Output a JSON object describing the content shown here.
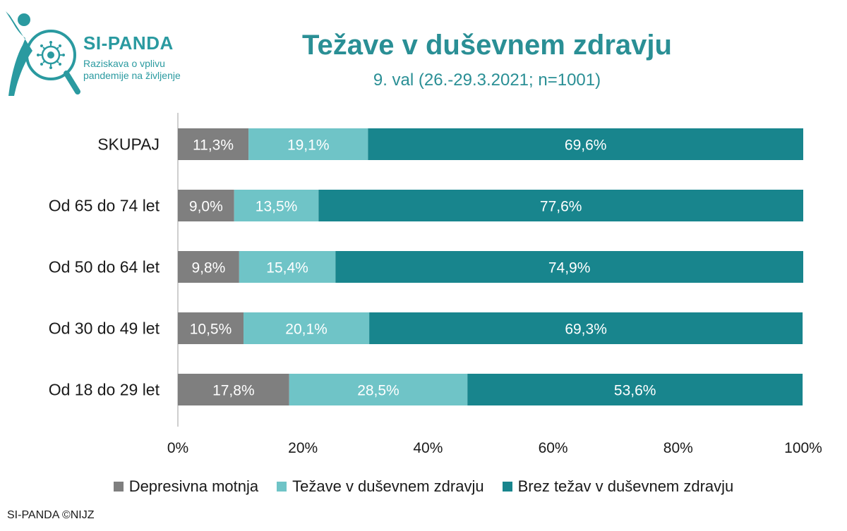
{
  "logo": {
    "title": "SI-PANDA",
    "subtitle": "Raziskava o vplivu pandemije na življenje",
    "colors": {
      "primary": "#2a9aa0"
    },
    "icon": "magnifier-virus-icon"
  },
  "footer": "SI-PANDA ©NIJZ",
  "chart_data": {
    "type": "bar",
    "orientation": "horizontal",
    "stacked": true,
    "title": "Težave v duševnem zdravju",
    "subtitle": "9. val (26.-29.3.2021; n=1001)",
    "categories": [
      "SKUPAJ",
      "Od 65 do 74 let",
      "Od 50 do 64 let",
      "Od 30 do 49 let",
      "Od 18 do 29 let"
    ],
    "series": [
      {
        "name": "Depresivna motnja",
        "color": "#7f7f7f",
        "values": [
          11.3,
          9.0,
          9.8,
          10.5,
          17.8
        ],
        "labels": [
          "11,3%",
          "9,0%",
          "9,8%",
          "10,5%",
          "17,8%"
        ]
      },
      {
        "name": "Težave v duševnem zdravju",
        "color": "#6fc4c7",
        "values": [
          19.1,
          13.5,
          15.4,
          20.1,
          28.5
        ],
        "labels": [
          "19,1%",
          "13,5%",
          "15,4%",
          "20,1%",
          "28,5%"
        ]
      },
      {
        "name": "Brez težav v duševnem zdravju",
        "color": "#18858d",
        "values": [
          69.6,
          77.6,
          74.9,
          69.3,
          53.6
        ],
        "labels": [
          "69,6%",
          "77,6%",
          "74,9%",
          "69,3%",
          "53,6%"
        ]
      }
    ],
    "xlim": [
      0,
      100
    ],
    "xticks": [
      "0%",
      "20%",
      "40%",
      "60%",
      "80%",
      "100%"
    ],
    "grid": false,
    "legend_position": "bottom"
  }
}
